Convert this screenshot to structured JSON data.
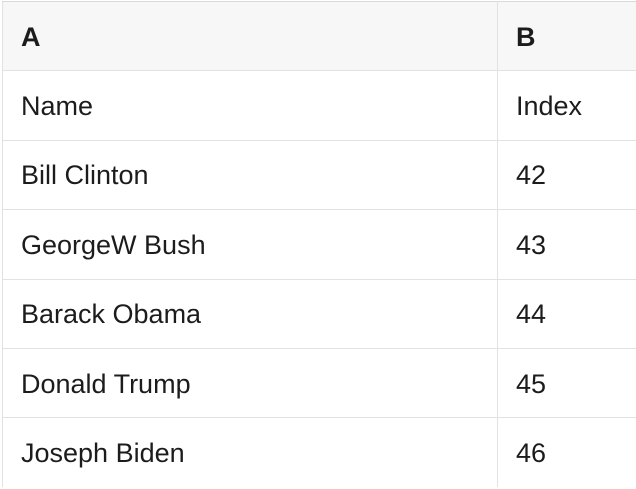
{
  "table": {
    "column_headers": [
      "A",
      "B"
    ],
    "rows": [
      {
        "A": "Name",
        "B": "Index"
      },
      {
        "A": "Bill Clinton",
        "B": "42"
      },
      {
        "A": "GeorgeW Bush",
        "B": "43"
      },
      {
        "A": "Barack Obama",
        "B": "44"
      },
      {
        "A": "Donald Trump",
        "B": "45"
      },
      {
        "A": "Joseph Biden",
        "B": "46"
      }
    ],
    "colors": {
      "header_background": "#f7f7f7",
      "row_background": "#ffffff",
      "border": "#e2e2e2",
      "text": "#1c1c1c"
    }
  }
}
